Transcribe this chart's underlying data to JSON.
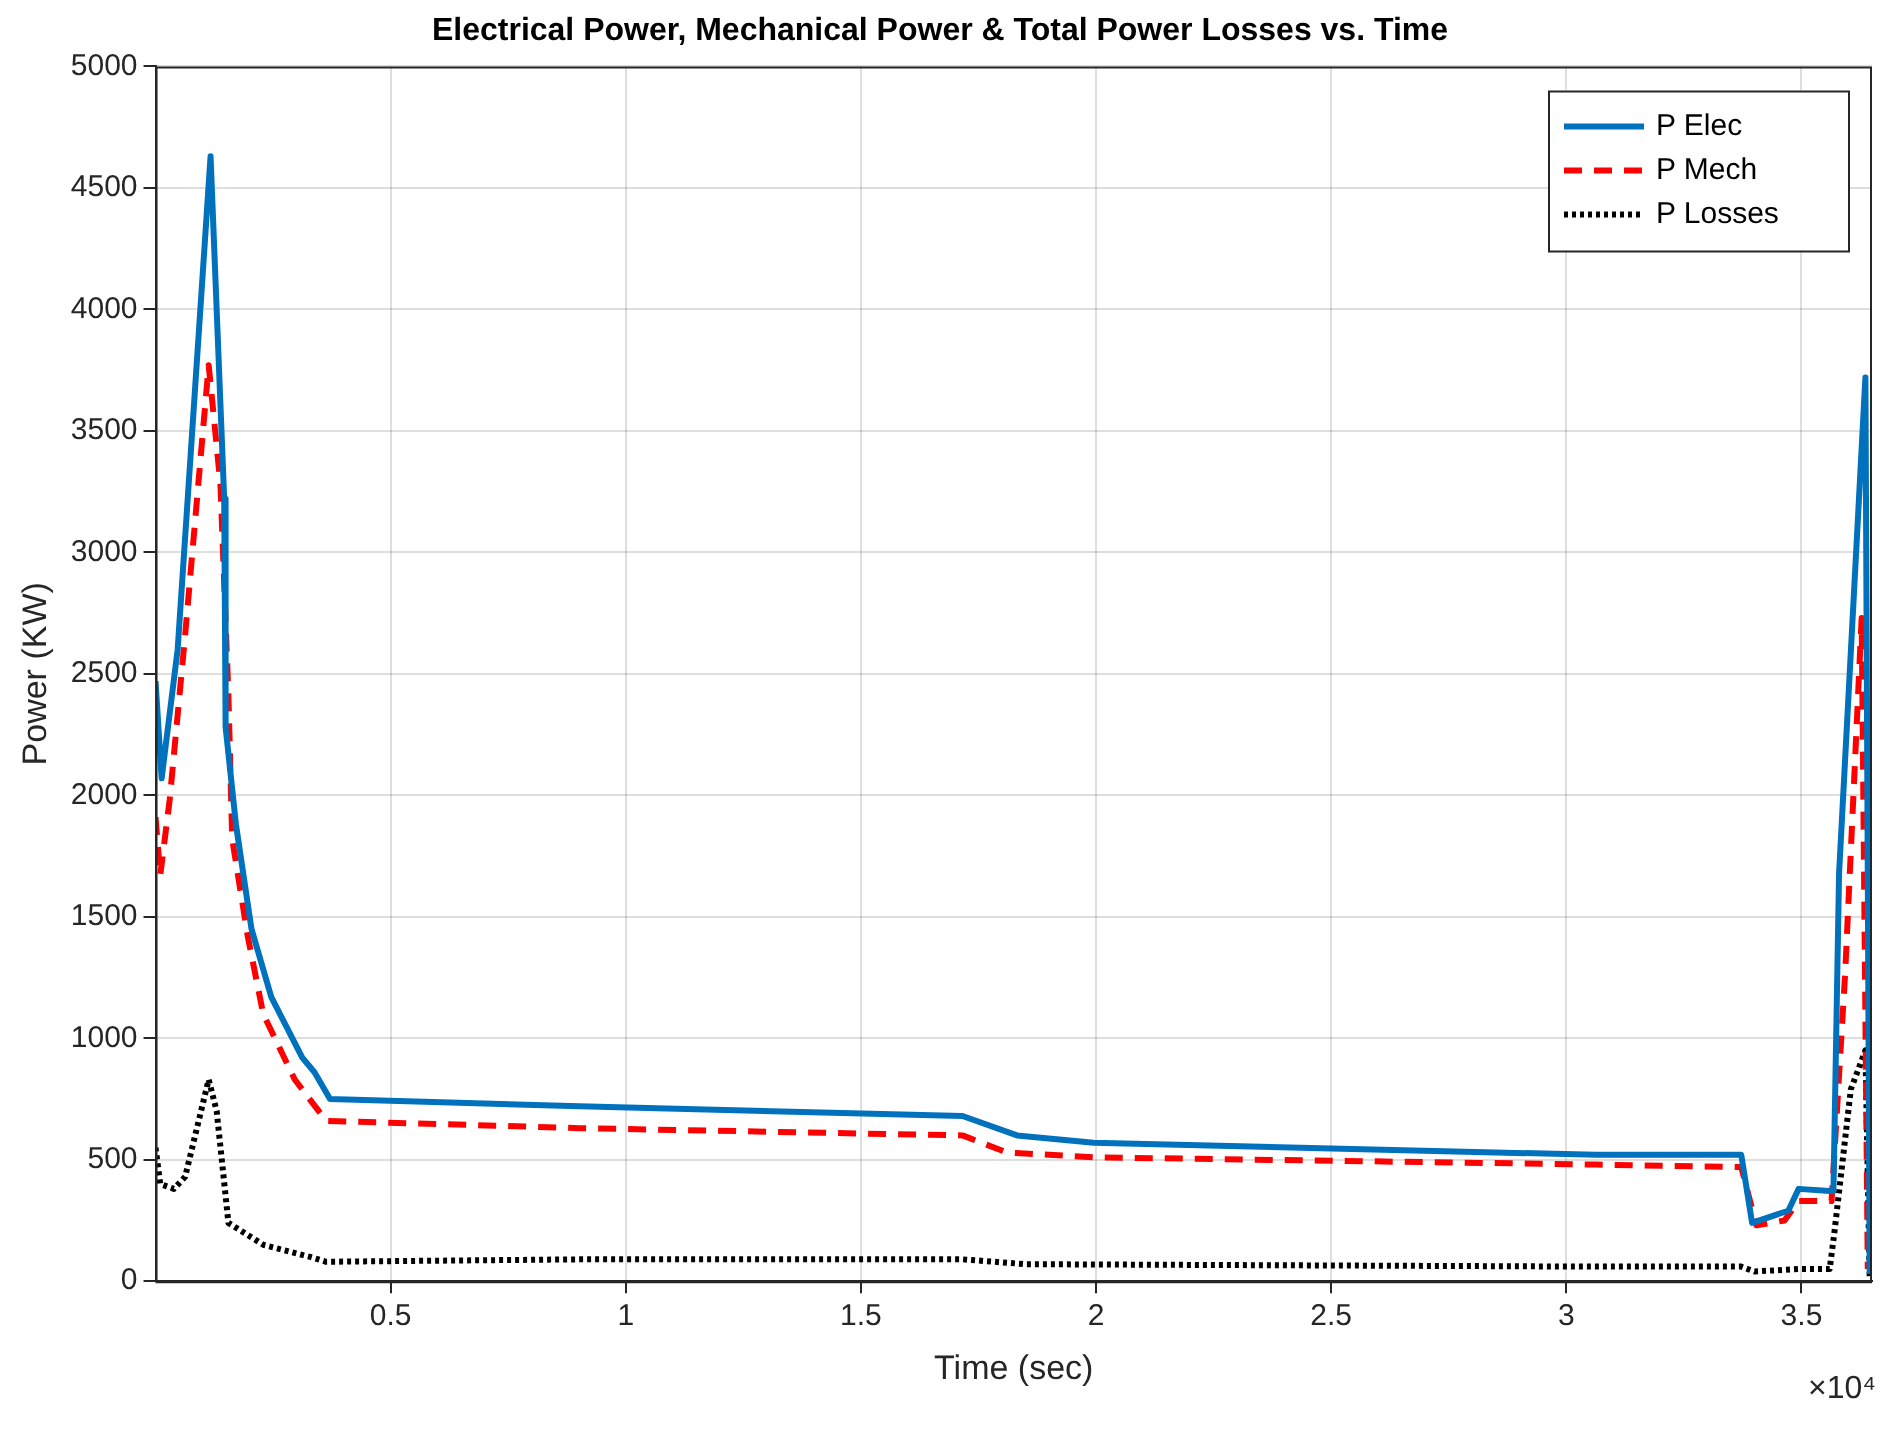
{
  "chart_data": {
    "type": "line",
    "title": "Electrical Power, Mechanical Power & Total Power Losses vs. Time",
    "xlabel": "Time (sec)",
    "ylabel": "Power (KW)",
    "annotations": [
      "×10⁴"
    ],
    "series": [
      {
        "name": "P Elec",
        "color": "#0072bd",
        "line_style": "solid",
        "x": [
          0,
          0.013,
          0.047,
          0.117,
          0.146,
          0.149,
          0.171,
          0.204,
          0.246,
          0.312,
          0.338,
          0.371,
          0.902,
          1.716,
          1.832,
          1.995,
          3.063,
          3.372,
          3.395,
          3.472,
          3.494,
          3.568,
          3.58,
          3.636,
          3.645
        ],
        "values": [
          2470,
          2070,
          2600,
          4630,
          3220,
          2280,
          1880,
          1450,
          1170,
          920,
          860,
          750,
          720,
          680,
          600,
          570,
          520,
          520,
          240,
          290,
          380,
          370,
          1680,
          3720,
          30
        ]
      },
      {
        "name": "P Mech",
        "color": "#ff0000",
        "line_style": "dashed",
        "x": [
          0,
          0.01,
          0.03,
          0.063,
          0.113,
          0.138,
          0.155,
          0.163,
          0.196,
          0.229,
          0.296,
          0.363,
          0.902,
          1.716,
          1.81,
          1.995,
          3.063,
          3.372,
          3.404,
          3.464,
          3.494,
          3.564,
          3.593,
          3.628,
          3.641
        ],
        "values": [
          1910,
          1670,
          1980,
          2660,
          3770,
          3280,
          2410,
          1820,
          1420,
          1100,
          830,
          660,
          630,
          600,
          530,
          510,
          480,
          470,
          230,
          250,
          330,
          330,
          1270,
          2730,
          50
        ]
      },
      {
        "name": "P Losses",
        "color": "#000000",
        "line_style": "dotted",
        "x": [
          0,
          0.01,
          0.039,
          0.063,
          0.113,
          0.13,
          0.155,
          0.229,
          0.329,
          0.363,
          0.902,
          1.716,
          1.85,
          3.063,
          3.372,
          3.4,
          3.494,
          3.56,
          3.57,
          3.605,
          3.636,
          3.645
        ],
        "values": [
          550,
          400,
          380,
          430,
          830,
          700,
          240,
          150,
          100,
          80,
          90,
          90,
          70,
          60,
          60,
          40,
          50,
          50,
          200,
          790,
          950,
          20
        ]
      }
    ],
    "xlim": [
      0,
      3.65
    ],
    "xticks": [
      0.5,
      1,
      1.5,
      2,
      2.5,
      3,
      3.5
    ],
    "ylim": [
      0,
      5000
    ],
    "yticks": [
      0,
      500,
      1000,
      1500,
      2000,
      2500,
      3000,
      3500,
      4000,
      4500,
      5000
    ],
    "grid": true,
    "legend": "top right",
    "marker": "none"
  }
}
